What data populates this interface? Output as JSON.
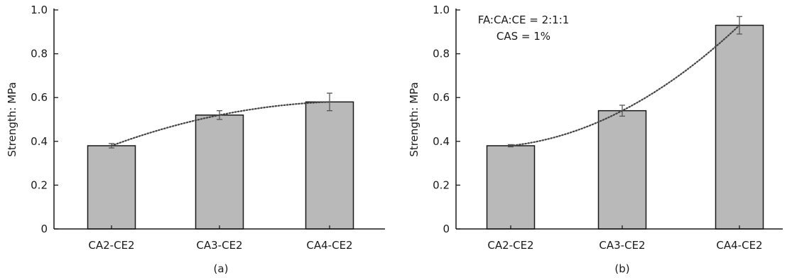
{
  "chart_data": [
    {
      "type": "bar",
      "panel_label": "(a)",
      "title": "",
      "xlabel": "",
      "ylabel": "Strength: MPa",
      "ylim": [
        0,
        1.0
      ],
      "yticks": [
        "0",
        "0.2",
        "0.4",
        "0.6",
        "0.8",
        "1.0"
      ],
      "categories": [
        "CA2-CE2",
        "CA3-CE2",
        "CA4-CE2"
      ],
      "values": [
        0.38,
        0.52,
        0.58
      ],
      "errors": [
        0.01,
        0.02,
        0.04
      ],
      "trendline": true,
      "annotations": [],
      "grid": false
    },
    {
      "type": "bar",
      "panel_label": "(b)",
      "title": "",
      "xlabel": "",
      "ylabel": "Strength: MPa",
      "ylim": [
        0,
        1.0
      ],
      "yticks": [
        "0",
        "0.2",
        "0.4",
        "0.6",
        "0.8",
        "1.0"
      ],
      "categories": [
        "CA2-CE2",
        "CA3-CE2",
        "CA4-CE2"
      ],
      "values": [
        0.38,
        0.54,
        0.93
      ],
      "errors": [
        0.005,
        0.025,
        0.04
      ],
      "trendline": true,
      "annotations": [
        "FA:CA:CE = 2:1:1",
        "CAS = 1%"
      ],
      "grid": false
    }
  ],
  "colors": {
    "bar_fill": "#b9b9b9",
    "bar_stroke": "#1a1a1a",
    "axis": "#1a1a1a",
    "errorbar": "#555555",
    "trendline": "#444444"
  }
}
